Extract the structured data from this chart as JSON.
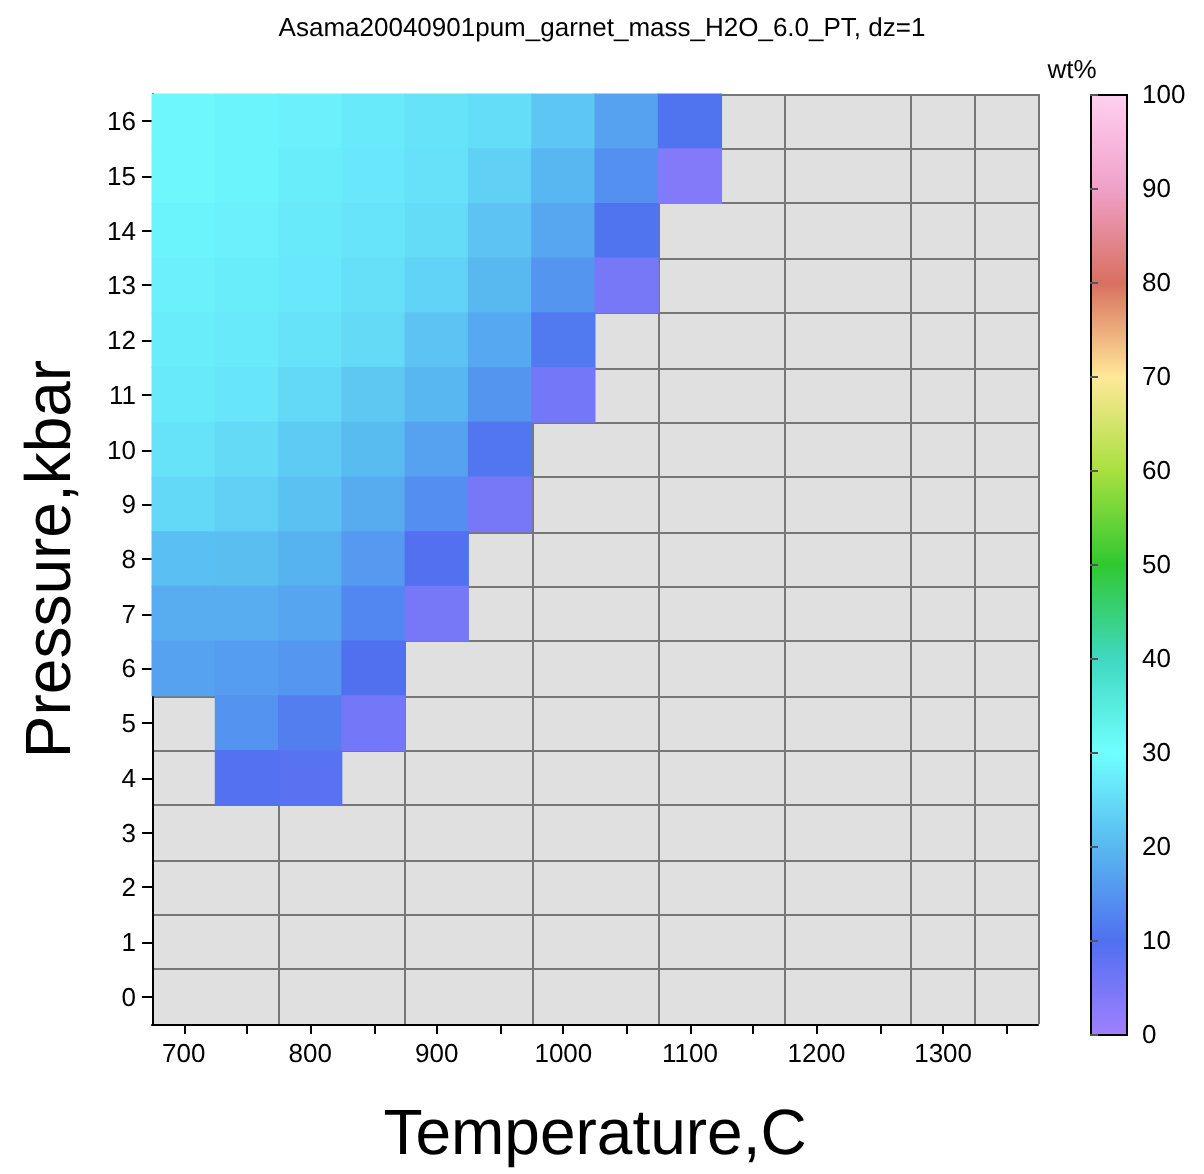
{
  "chart_data": {
    "type": "heatmap",
    "title": "Asama20040901pum_garnet_mass_H2O_6.0_PT, dz=1",
    "xlabel": "Temperature,C",
    "ylabel": "Pressure,kbar",
    "clabel": "wt%",
    "categories": [
      "700",
      null,
      "800",
      null,
      "900",
      null,
      "1000",
      null,
      "1100",
      null,
      "1200",
      null,
      "1300",
      null
    ],
    "y_categories": [
      "16",
      "15",
      "14",
      "13",
      "12",
      "11",
      "10",
      "9",
      "8",
      "7",
      "6",
      "5",
      "4",
      "3",
      "2",
      "1",
      "0"
    ],
    "cells": [
      [
        29,
        28.5,
        28,
        27,
        26,
        25.2,
        22,
        17,
        10.5,
        null,
        null,
        null,
        null,
        null
      ],
      [
        29,
        28.5,
        27.5,
        26.8,
        25.8,
        23.4,
        19.8,
        14.5,
        3.8,
        null,
        null,
        null,
        null,
        null
      ],
      [
        28.5,
        28,
        27,
        26.2,
        24.9,
        21.6,
        17.6,
        10.4,
        null,
        null,
        null,
        null,
        null,
        null
      ],
      [
        28,
        27.5,
        26.8,
        25.7,
        23.8,
        20.1,
        15.1,
        5.2,
        null,
        null,
        null,
        null,
        null,
        null
      ],
      [
        27.5,
        27,
        26,
        24.8,
        21.6,
        17.9,
        11.4,
        null,
        null,
        null,
        null,
        null,
        null,
        null
      ],
      [
        27,
        26.3,
        24.7,
        22.3,
        19.7,
        15.1,
        5.5,
        null,
        null,
        null,
        null,
        null,
        null,
        null
      ],
      [
        26,
        24.8,
        22.7,
        20.6,
        16.9,
        10.8,
        null,
        null,
        null,
        null,
        null,
        null,
        null,
        null
      ],
      [
        24.5,
        23.5,
        21.2,
        18.3,
        14.1,
        5.2,
        null,
        null,
        null,
        null,
        null,
        null,
        null,
        null
      ],
      [
        21,
        20.8,
        19.1,
        15.8,
        9.7,
        null,
        null,
        null,
        null,
        null,
        null,
        null,
        null,
        null
      ],
      [
        18.5,
        18.5,
        17.4,
        13.1,
        5.2,
        null,
        null,
        null,
        null,
        null,
        null,
        null,
        null,
        null
      ],
      [
        17,
        16.2,
        15.3,
        9.9,
        null,
        null,
        null,
        null,
        null,
        null,
        null,
        null,
        null,
        null
      ],
      [
        null,
        14.8,
        12,
        5.5,
        null,
        null,
        null,
        null,
        null,
        null,
        null,
        null,
        null,
        null
      ],
      [
        null,
        9.5,
        9,
        null,
        null,
        null,
        null,
        null,
        null,
        null,
        null,
        null,
        null,
        null
      ],
      [
        null,
        null,
        null,
        null,
        null,
        null,
        null,
        null,
        null,
        null,
        null,
        null,
        null,
        null
      ],
      [
        null,
        null,
        null,
        null,
        null,
        null,
        null,
        null,
        null,
        null,
        null,
        null,
        null,
        null
      ],
      [
        null,
        null,
        null,
        null,
        null,
        null,
        null,
        null,
        null,
        null,
        null,
        null,
        null,
        null
      ],
      [
        null,
        null,
        null,
        null,
        null,
        null,
        null,
        null,
        null,
        null,
        null,
        null,
        null,
        null
      ]
    ],
    "clim": [
      0,
      100
    ],
    "cticks": [
      0,
      10,
      20,
      30,
      40,
      50,
      60,
      70,
      80,
      90,
      100
    ],
    "grid": true
  }
}
